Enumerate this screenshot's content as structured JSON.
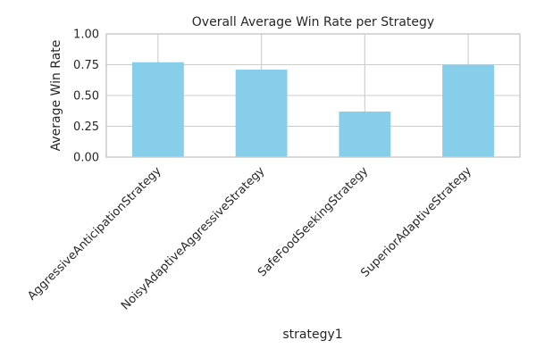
{
  "chart_data": {
    "type": "bar",
    "title": "Overall Average Win Rate per Strategy",
    "xlabel": "strategy1",
    "ylabel": "Average Win Rate",
    "categories": [
      "AggressiveAnticipationStrategy",
      "NoisyAdaptiveAggressiveStrategy",
      "SafeFoodSeekingStrategy",
      "SuperiorAdaptiveStrategy"
    ],
    "values": [
      0.77,
      0.71,
      0.37,
      0.75
    ],
    "ylim": [
      0,
      1.0
    ],
    "yticks": [
      "0.00",
      "0.25",
      "0.50",
      "0.75",
      "1.00"
    ],
    "grid": true,
    "legend": "none",
    "bar_color": "#87ceeb",
    "grid_color": "#cccccc"
  }
}
